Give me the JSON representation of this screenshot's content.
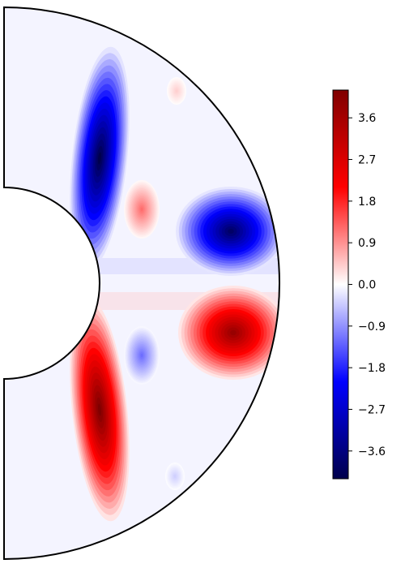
{
  "chart_data": {
    "type": "heatmap",
    "projection": "meridional half-annulus (shell cross-section)",
    "title": "",
    "colormap": "seismic",
    "colors": {
      "min": "#00004c",
      "mid_low": "#0000ff",
      "zero": "#ffffff",
      "mid_high": "#ff0000",
      "max": "#800000",
      "outline": "#000000"
    },
    "colorbar": {
      "placement": "right",
      "range": [
        -4.2,
        4.2
      ],
      "ticks": [
        -3.6,
        -2.7,
        -1.8,
        -0.9,
        0.0,
        0.9,
        1.8,
        2.7,
        3.6
      ],
      "tick_labels": [
        "−3.6",
        "−2.7",
        "−1.8",
        "−0.9",
        "0.0",
        "0.9",
        "1.8",
        "2.7",
        "3.6"
      ]
    },
    "features": [
      {
        "name": "inner tangent cylinder lobe (north)",
        "sign": "negative",
        "peak": -4.2
      },
      {
        "name": "inner tangent cylinder lobe (south)",
        "sign": "positive",
        "peak": 4.2
      },
      {
        "name": "equatorial cell (north)",
        "sign": "negative",
        "peak": -3.9
      },
      {
        "name": "equatorial cell (south)",
        "sign": "positive",
        "peak": 3.8
      },
      {
        "name": "mid-shell blob (north)",
        "sign": "positive",
        "peak": 1.2
      },
      {
        "name": "mid-shell blob (south)",
        "sign": "negative",
        "peak": -1.2
      },
      {
        "name": "high-latitude spot (north)",
        "sign": "positive",
        "peak": 0.4
      },
      {
        "name": "high-latitude spot (south)",
        "sign": "negative",
        "peak": -0.4
      }
    ]
  }
}
